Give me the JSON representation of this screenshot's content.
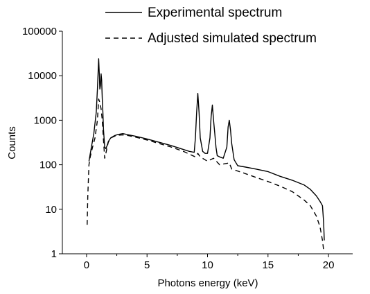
{
  "chart_data": {
    "type": "line",
    "title": "",
    "xlabel": "Photons energy (keV)",
    "ylabel": "Counts",
    "xlim": [
      -2,
      22
    ],
    "ylim": [
      1,
      100000
    ],
    "yscale": "log",
    "grid": false,
    "legend_position": "top-right",
    "x_ticks": [
      0,
      5,
      10,
      15,
      20
    ],
    "x_tick_labels": [
      "0",
      "5",
      "10",
      "15",
      "20"
    ],
    "y_ticks": [
      1,
      10,
      100,
      1000,
      10000,
      100000
    ],
    "y_tick_labels": [
      "1",
      "10",
      "100",
      "1000",
      "10000",
      "100000"
    ],
    "series": [
      {
        "name": "Experimental spectrum",
        "style": "solid",
        "color": "#000000",
        "x": [
          0.2,
          0.4,
          0.6,
          0.8,
          0.9,
          1.0,
          1.05,
          1.1,
          1.15,
          1.2,
          1.25,
          1.3,
          1.35,
          1.4,
          1.5,
          1.6,
          1.7,
          1.8,
          2.0,
          2.3,
          2.6,
          3.0,
          3.5,
          4.0,
          4.5,
          5.0,
          6.0,
          7.0,
          8.0,
          8.5,
          8.9,
          9.0,
          9.1,
          9.2,
          9.3,
          9.4,
          9.6,
          9.8,
          10.0,
          10.2,
          10.3,
          10.4,
          10.5,
          10.6,
          10.7,
          10.8,
          11.0,
          11.3,
          11.6,
          11.7,
          11.8,
          11.9,
          12.0,
          12.2,
          12.5,
          13.0,
          14.0,
          15.0,
          16.0,
          17.0,
          18.0,
          18.5,
          19.0,
          19.3,
          19.5,
          19.6,
          19.65
        ],
        "y": [
          120,
          250,
          500,
          1500,
          5000,
          24000,
          12000,
          5000,
          6000,
          11000,
          8000,
          3000,
          1500,
          600,
          250,
          230,
          270,
          330,
          400,
          450,
          480,
          500,
          470,
          440,
          410,
          380,
          320,
          270,
          220,
          200,
          190,
          400,
          1500,
          4000,
          1500,
          400,
          200,
          180,
          180,
          400,
          1200,
          2200,
          1000,
          500,
          250,
          160,
          150,
          140,
          250,
          700,
          1000,
          600,
          300,
          130,
          95,
          90,
          80,
          70,
          55,
          45,
          35,
          28,
          20,
          15,
          12,
          5,
          2
        ]
      },
      {
        "name": "Adjusted simulated spectrum",
        "style": "dashed",
        "color": "#000000",
        "x": [
          0.05,
          0.1,
          0.2,
          0.3,
          0.5,
          0.7,
          0.9,
          1.0,
          1.1,
          1.2,
          1.3,
          1.4,
          1.5,
          1.6,
          1.7,
          1.8,
          2.0,
          2.5,
          3.0,
          3.5,
          4.0,
          5.0,
          6.0,
          7.0,
          8.0,
          9.0,
          9.2,
          9.4,
          10.0,
          10.5,
          11.0,
          11.8,
          12.0,
          13.0,
          14.0,
          15.0,
          16.0,
          17.0,
          18.0,
          18.5,
          19.0,
          19.3,
          19.5,
          19.6
        ],
        "y": [
          4.5,
          20,
          100,
          150,
          250,
          400,
          1000,
          3000,
          2500,
          1800,
          1000,
          350,
          140,
          180,
          250,
          320,
          400,
          460,
          470,
          450,
          420,
          360,
          300,
          250,
          200,
          150,
          180,
          150,
          120,
          140,
          100,
          110,
          80,
          65,
          52,
          42,
          33,
          25,
          16,
          12,
          7,
          4,
          2,
          1.2
        ]
      }
    ]
  }
}
